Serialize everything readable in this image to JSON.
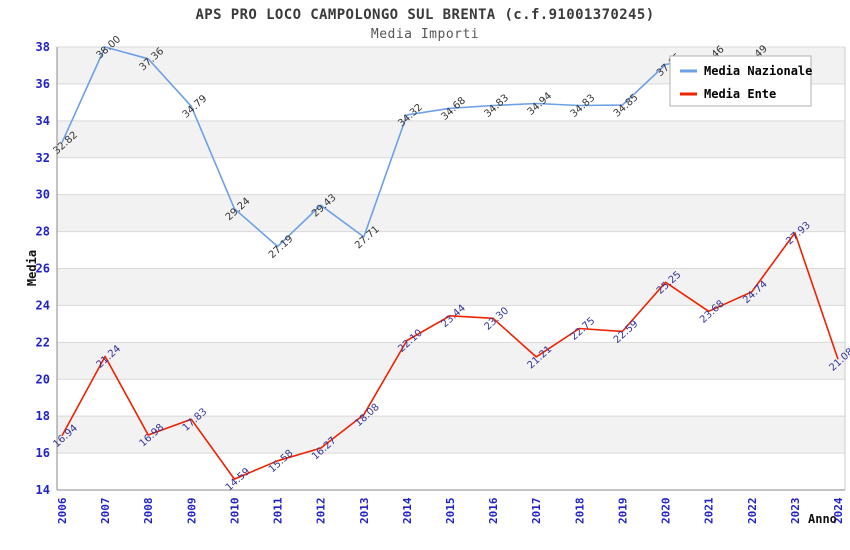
{
  "title": "APS PRO LOCO CAMPOLONGO SUL BRENTA (c.f.91001370245)",
  "subtitle": "Media Importi",
  "chart_data": {
    "type": "line",
    "x": [
      2006,
      2007,
      2008,
      2009,
      2010,
      2011,
      2012,
      2013,
      2014,
      2015,
      2016,
      2017,
      2018,
      2019,
      2020,
      2021,
      2022,
      2023,
      2024
    ],
    "xlabel": "Anno",
    "ylabel": "Media",
    "ylim": [
      14,
      38
    ],
    "ytick_step": 2,
    "grid": "horizontal-lines-with-alternating-gray-bands",
    "legend_position": "top-right",
    "series": [
      {
        "name": "Media Nazionale",
        "color": "#6ea0e6",
        "label_color": "#333333",
        "values": [
          32.82,
          38.0,
          37.36,
          34.79,
          29.24,
          27.19,
          29.43,
          27.71,
          34.32,
          34.68,
          34.83,
          34.94,
          34.83,
          34.85,
          37.05,
          37.46,
          37.49,
          null,
          null
        ]
      },
      {
        "name": "Media Ente",
        "color": "#ee2200",
        "label_color": "#333399",
        "values": [
          16.94,
          21.24,
          16.98,
          17.83,
          14.59,
          15.58,
          16.27,
          18.08,
          22.1,
          23.44,
          23.3,
          21.21,
          22.75,
          22.59,
          25.25,
          23.68,
          24.74,
          27.93,
          21.08
        ]
      }
    ]
  },
  "colors": {
    "axis_tick_label": "#2222cc",
    "grid_line": "#d9d9d9",
    "band_fill": "#f2f2f2",
    "axis_line": "#888888",
    "plot_right_edge": "#cccccc",
    "axis_title": "#111111",
    "legend_border": "#b0b0b0",
    "legend_bg": "#ffffff",
    "legend_text": "#000000"
  }
}
